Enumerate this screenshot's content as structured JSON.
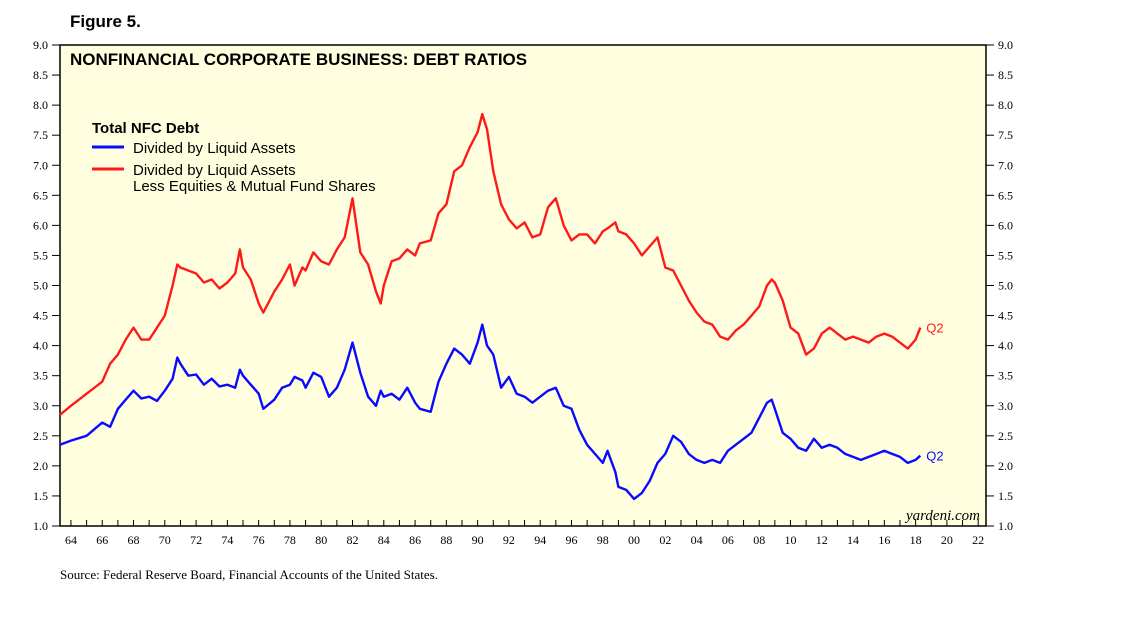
{
  "figure_label": "Figure 5.",
  "source": "Source: Federal Reserve Board, Financial Accounts of the United States.",
  "watermark": "yardeni.com",
  "colors": {
    "background": "#ffffe0",
    "series1": "#0a0aff",
    "series2": "#ff1a1a",
    "axis": "#000000"
  },
  "chart_data": {
    "type": "line",
    "title": "NONFINANCIAL CORPORATE BUSINESS: DEBT RATIOS",
    "legend_title": "Total NFC Debt",
    "legend_placement": "top-left",
    "xlabel": "",
    "ylabel": "",
    "xlim": [
      1963.3,
      2022.5
    ],
    "ylim": [
      1.0,
      9.0
    ],
    "y_ticks": [
      "1.0",
      "1.5",
      "2.0",
      "2.5",
      "3.0",
      "3.5",
      "4.0",
      "4.5",
      "5.0",
      "5.5",
      "6.0",
      "6.5",
      "7.0",
      "7.5",
      "8.0",
      "8.5",
      "9.0"
    ],
    "x_tick_labels": [
      "64",
      "66",
      "68",
      "70",
      "72",
      "74",
      "76",
      "78",
      "80",
      "82",
      "84",
      "86",
      "88",
      "90",
      "92",
      "94",
      "96",
      "98",
      "00",
      "02",
      "04",
      "06",
      "08",
      "10",
      "12",
      "14",
      "16",
      "18",
      "20",
      "22"
    ],
    "series": [
      {
        "name": "Divided by Liquid Assets",
        "legend_label": "Divided by Liquid Assets",
        "end_label": "Q2",
        "points": [
          [
            1963.3,
            2.35
          ],
          [
            1964,
            2.42
          ],
          [
            1965,
            2.5
          ],
          [
            1966,
            2.72
          ],
          [
            1966.5,
            2.65
          ],
          [
            1967,
            2.95
          ],
          [
            1967.5,
            3.1
          ],
          [
            1968,
            3.25
          ],
          [
            1968.5,
            3.12
          ],
          [
            1969,
            3.15
          ],
          [
            1969.5,
            3.08
          ],
          [
            1970,
            3.25
          ],
          [
            1970.5,
            3.45
          ],
          [
            1970.8,
            3.8
          ],
          [
            1971,
            3.7
          ],
          [
            1971.5,
            3.5
          ],
          [
            1972,
            3.52
          ],
          [
            1972.5,
            3.35
          ],
          [
            1973,
            3.45
          ],
          [
            1973.5,
            3.32
          ],
          [
            1974,
            3.35
          ],
          [
            1974.5,
            3.3
          ],
          [
            1974.8,
            3.6
          ],
          [
            1975,
            3.5
          ],
          [
            1975.5,
            3.35
          ],
          [
            1976,
            3.2
          ],
          [
            1976.3,
            2.95
          ],
          [
            1977,
            3.1
          ],
          [
            1977.5,
            3.3
          ],
          [
            1978,
            3.35
          ],
          [
            1978.3,
            3.48
          ],
          [
            1978.8,
            3.42
          ],
          [
            1979,
            3.3
          ],
          [
            1979.5,
            3.55
          ],
          [
            1980,
            3.48
          ],
          [
            1980.5,
            3.15
          ],
          [
            1981,
            3.3
          ],
          [
            1981.5,
            3.6
          ],
          [
            1982,
            4.05
          ],
          [
            1982.5,
            3.55
          ],
          [
            1983,
            3.15
          ],
          [
            1983.5,
            3.0
          ],
          [
            1983.8,
            3.25
          ],
          [
            1984,
            3.15
          ],
          [
            1984.5,
            3.2
          ],
          [
            1985,
            3.1
          ],
          [
            1985.5,
            3.3
          ],
          [
            1986,
            3.05
          ],
          [
            1986.3,
            2.95
          ],
          [
            1987,
            2.9
          ],
          [
            1987.5,
            3.4
          ],
          [
            1988,
            3.7
          ],
          [
            1988.5,
            3.95
          ],
          [
            1989,
            3.85
          ],
          [
            1989.5,
            3.7
          ],
          [
            1990,
            4.05
          ],
          [
            1990.3,
            4.35
          ],
          [
            1990.6,
            4.0
          ],
          [
            1991,
            3.85
          ],
          [
            1991.5,
            3.3
          ],
          [
            1992,
            3.48
          ],
          [
            1992.5,
            3.2
          ],
          [
            1993,
            3.15
          ],
          [
            1993.5,
            3.05
          ],
          [
            1994,
            3.15
          ],
          [
            1994.5,
            3.25
          ],
          [
            1995,
            3.3
          ],
          [
            1995.5,
            3.0
          ],
          [
            1996,
            2.95
          ],
          [
            1996.5,
            2.6
          ],
          [
            1997,
            2.35
          ],
          [
            1997.5,
            2.2
          ],
          [
            1998,
            2.05
          ],
          [
            1998.3,
            2.25
          ],
          [
            1998.8,
            1.9
          ],
          [
            1999,
            1.65
          ],
          [
            1999.5,
            1.6
          ],
          [
            2000,
            1.45
          ],
          [
            2000.5,
            1.55
          ],
          [
            2001,
            1.75
          ],
          [
            2001.5,
            2.05
          ],
          [
            2002,
            2.2
          ],
          [
            2002.5,
            2.5
          ],
          [
            2003,
            2.4
          ],
          [
            2003.5,
            2.2
          ],
          [
            2004,
            2.1
          ],
          [
            2004.5,
            2.05
          ],
          [
            2005,
            2.1
          ],
          [
            2005.5,
            2.05
          ],
          [
            2006,
            2.25
          ],
          [
            2006.5,
            2.35
          ],
          [
            2007,
            2.45
          ],
          [
            2007.5,
            2.55
          ],
          [
            2008,
            2.8
          ],
          [
            2008.5,
            3.05
          ],
          [
            2008.8,
            3.1
          ],
          [
            2009,
            2.95
          ],
          [
            2009.5,
            2.55
          ],
          [
            2010,
            2.45
          ],
          [
            2010.5,
            2.3
          ],
          [
            2011,
            2.25
          ],
          [
            2011.5,
            2.45
          ],
          [
            2012,
            2.3
          ],
          [
            2012.5,
            2.35
          ],
          [
            2013,
            2.3
          ],
          [
            2013.5,
            2.2
          ],
          [
            2014,
            2.15
          ],
          [
            2014.5,
            2.1
          ],
          [
            2015,
            2.15
          ],
          [
            2015.5,
            2.2
          ],
          [
            2016,
            2.25
          ],
          [
            2016.5,
            2.2
          ],
          [
            2017,
            2.15
          ],
          [
            2017.5,
            2.05
          ],
          [
            2018,
            2.1
          ],
          [
            2018.3,
            2.17
          ]
        ]
      },
      {
        "name": "Divided by Liquid Assets Less Equities & Mutual Fund Shares",
        "legend_label": "Divided by Liquid Assets",
        "legend_label_2": "Less Equities & Mutual Fund Shares",
        "end_label": "Q2",
        "points": [
          [
            1963.3,
            2.85
          ],
          [
            1964,
            3.0
          ],
          [
            1965,
            3.2
          ],
          [
            1966,
            3.4
          ],
          [
            1966.5,
            3.7
          ],
          [
            1967,
            3.85
          ],
          [
            1967.5,
            4.1
          ],
          [
            1968,
            4.3
          ],
          [
            1968.5,
            4.1
          ],
          [
            1969,
            4.1
          ],
          [
            1969.5,
            4.3
          ],
          [
            1970,
            4.5
          ],
          [
            1970.5,
            5.0
          ],
          [
            1970.8,
            5.35
          ],
          [
            1971,
            5.3
          ],
          [
            1971.5,
            5.25
          ],
          [
            1972,
            5.2
          ],
          [
            1972.5,
            5.05
          ],
          [
            1973,
            5.1
          ],
          [
            1973.5,
            4.95
          ],
          [
            1974,
            5.05
          ],
          [
            1974.5,
            5.2
          ],
          [
            1974.8,
            5.6
          ],
          [
            1975,
            5.3
          ],
          [
            1975.5,
            5.1
          ],
          [
            1976,
            4.7
          ],
          [
            1976.3,
            4.55
          ],
          [
            1977,
            4.9
          ],
          [
            1977.5,
            5.1
          ],
          [
            1978,
            5.35
          ],
          [
            1978.3,
            5.0
          ],
          [
            1978.8,
            5.3
          ],
          [
            1979,
            5.25
          ],
          [
            1979.5,
            5.55
          ],
          [
            1980,
            5.4
          ],
          [
            1980.5,
            5.35
          ],
          [
            1981,
            5.6
          ],
          [
            1981.5,
            5.8
          ],
          [
            1982,
            6.45
          ],
          [
            1982.5,
            5.55
          ],
          [
            1983,
            5.35
          ],
          [
            1983.5,
            4.9
          ],
          [
            1983.8,
            4.7
          ],
          [
            1984,
            5.0
          ],
          [
            1984.5,
            5.4
          ],
          [
            1985,
            5.45
          ],
          [
            1985.5,
            5.6
          ],
          [
            1986,
            5.5
          ],
          [
            1986.3,
            5.7
          ],
          [
            1987,
            5.75
          ],
          [
            1987.5,
            6.2
          ],
          [
            1988,
            6.35
          ],
          [
            1988.5,
            6.9
          ],
          [
            1989,
            7.0
          ],
          [
            1989.5,
            7.3
          ],
          [
            1990,
            7.55
          ],
          [
            1990.3,
            7.85
          ],
          [
            1990.6,
            7.6
          ],
          [
            1991,
            6.9
          ],
          [
            1991.5,
            6.35
          ],
          [
            1992,
            6.1
          ],
          [
            1992.5,
            5.95
          ],
          [
            1993,
            6.05
          ],
          [
            1993.5,
            5.8
          ],
          [
            1994,
            5.85
          ],
          [
            1994.5,
            6.3
          ],
          [
            1995,
            6.45
          ],
          [
            1995.5,
            6.0
          ],
          [
            1996,
            5.75
          ],
          [
            1996.5,
            5.85
          ],
          [
            1997,
            5.85
          ],
          [
            1997.5,
            5.7
          ],
          [
            1998,
            5.9
          ],
          [
            1998.3,
            5.95
          ],
          [
            1998.8,
            6.05
          ],
          [
            1999,
            5.9
          ],
          [
            1999.5,
            5.85
          ],
          [
            2000,
            5.7
          ],
          [
            2000.5,
            5.5
          ],
          [
            2001,
            5.65
          ],
          [
            2001.5,
            5.8
          ],
          [
            2002,
            5.3
          ],
          [
            2002.5,
            5.25
          ],
          [
            2003,
            5.0
          ],
          [
            2003.5,
            4.75
          ],
          [
            2004,
            4.55
          ],
          [
            2004.5,
            4.4
          ],
          [
            2005,
            4.35
          ],
          [
            2005.5,
            4.15
          ],
          [
            2006,
            4.1
          ],
          [
            2006.5,
            4.25
          ],
          [
            2007,
            4.35
          ],
          [
            2007.5,
            4.5
          ],
          [
            2008,
            4.65
          ],
          [
            2008.5,
            5.0
          ],
          [
            2008.8,
            5.1
          ],
          [
            2009,
            5.05
          ],
          [
            2009.5,
            4.75
          ],
          [
            2010,
            4.3
          ],
          [
            2010.5,
            4.2
          ],
          [
            2011,
            3.85
          ],
          [
            2011.5,
            3.95
          ],
          [
            2012,
            4.2
          ],
          [
            2012.5,
            4.3
          ],
          [
            2013,
            4.2
          ],
          [
            2013.5,
            4.1
          ],
          [
            2014,
            4.15
          ],
          [
            2014.5,
            4.1
          ],
          [
            2015,
            4.05
          ],
          [
            2015.5,
            4.15
          ],
          [
            2016,
            4.2
          ],
          [
            2016.5,
            4.15
          ],
          [
            2017,
            4.05
          ],
          [
            2017.5,
            3.95
          ],
          [
            2018,
            4.1
          ],
          [
            2018.3,
            4.3
          ]
        ]
      }
    ]
  }
}
